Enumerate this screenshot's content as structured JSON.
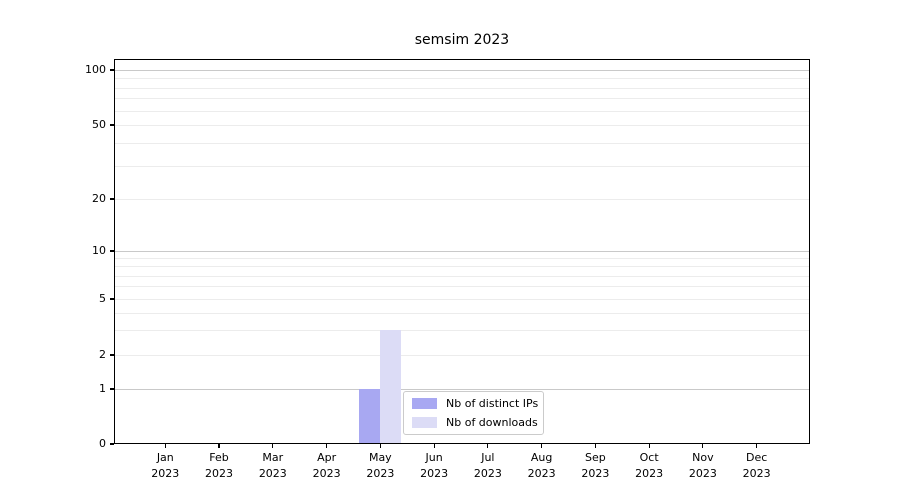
{
  "title": "semsim 2023",
  "chart_data": {
    "type": "bar",
    "title": "semsim 2023",
    "months": [
      "Jan",
      "Feb",
      "Mar",
      "Apr",
      "May",
      "Jun",
      "Jul",
      "Aug",
      "Sep",
      "Oct",
      "Nov",
      "Dec"
    ],
    "year": "2023",
    "series": [
      {
        "name": "Nb of distinct IPs",
        "color": "#a8a8f2",
        "values": [
          0,
          0,
          0,
          0,
          1,
          0,
          0,
          0,
          0,
          0,
          0,
          0
        ]
      },
      {
        "name": "Nb of downloads",
        "color": "#dcdcf6",
        "values": [
          0,
          0,
          0,
          0,
          3,
          0,
          0,
          0,
          0,
          0,
          0,
          0
        ]
      }
    ],
    "y_ticks": [
      0,
      1,
      2,
      5,
      10,
      20,
      50,
      100
    ],
    "y_scale": "symlog",
    "ylim": [
      0,
      115
    ],
    "xlabel": "",
    "ylabel": "",
    "grid": "horizontal, major and minor",
    "legend_position": "inside lower center"
  },
  "colors": {
    "major_gridline": "#c9c9c9",
    "minor_gridline": "#ececec",
    "axis": "#000000",
    "background": "#ffffff"
  }
}
